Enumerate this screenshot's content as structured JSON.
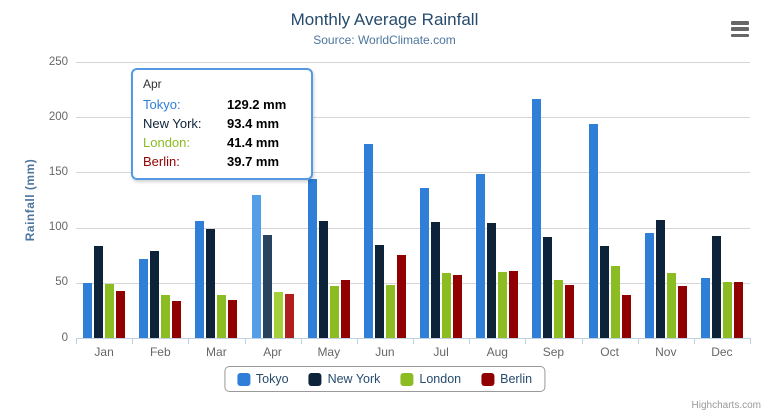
{
  "header": {
    "title": "Monthly Average Rainfall",
    "subtitle": "Source: WorldClimate.com"
  },
  "y_axis": {
    "title": "Rainfall (mm)"
  },
  "chart_data": {
    "type": "bar",
    "title": "Monthly Average Rainfall",
    "subtitle": "Source: WorldClimate.com",
    "xlabel": "",
    "ylabel": "Rainfall (mm)",
    "ylim": [
      0,
      250
    ],
    "y_ticks": [
      0,
      50,
      100,
      150,
      200,
      250
    ],
    "grid": true,
    "legend_position": "bottom",
    "categories": [
      "Jan",
      "Feb",
      "Mar",
      "Apr",
      "May",
      "Jun",
      "Jul",
      "Aug",
      "Sep",
      "Oct",
      "Nov",
      "Dec"
    ],
    "series": [
      {
        "name": "Tokyo",
        "color": "#2f7ed8",
        "hover_color": "#549ee8",
        "values": [
          49.9,
          71.5,
          106.4,
          129.2,
          144.0,
          176.0,
          135.6,
          148.5,
          216.4,
          194.1,
          95.6,
          54.4
        ]
      },
      {
        "name": "New York",
        "color": "#0d233a",
        "hover_color": "#29435e",
        "values": [
          83.6,
          78.8,
          98.5,
          93.4,
          106.0,
          84.5,
          105.0,
          104.3,
          91.2,
          83.5,
          106.6,
          92.3
        ]
      },
      {
        "name": "London",
        "color": "#8bbc21",
        "hover_color": "#a3d13a",
        "values": [
          48.9,
          38.8,
          39.3,
          41.4,
          47.0,
          48.3,
          59.0,
          59.6,
          52.4,
          65.2,
          59.3,
          51.2
        ]
      },
      {
        "name": "Berlin",
        "color": "#910000",
        "hover_color": "#b01e1e",
        "values": [
          42.4,
          33.2,
          34.5,
          39.7,
          52.6,
          75.5,
          57.4,
          60.4,
          47.6,
          39.1,
          46.8,
          51.1
        ]
      }
    ],
    "hovered_category_index": 3
  },
  "tooltip": {
    "header": "Apr",
    "border_color": "#5599e2",
    "rows": [
      {
        "label": "Tokyo:",
        "value": "129.2 mm",
        "color": "#2f7ed8"
      },
      {
        "label": "New York:",
        "value": "93.4 mm",
        "color": "#0d233a"
      },
      {
        "label": "London:",
        "value": "41.4 mm",
        "color": "#8bbc21"
      },
      {
        "label": "Berlin:",
        "value": "39.7 mm",
        "color": "#910000"
      }
    ]
  },
  "legend": {
    "items": [
      "Tokyo",
      "New York",
      "London",
      "Berlin"
    ]
  },
  "credits": {
    "label": "Highcharts.com"
  },
  "context_menu": {
    "icon": "hamburger-icon"
  }
}
